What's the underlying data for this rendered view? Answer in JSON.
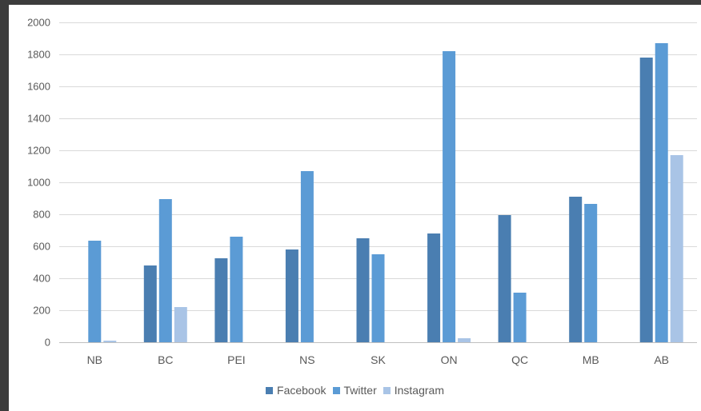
{
  "chart_data": {
    "type": "bar",
    "title": "",
    "xlabel": "",
    "ylabel": "",
    "categories": [
      "NB",
      "BC",
      "PEI",
      "NS",
      "SK",
      "ON",
      "QC",
      "MB",
      "AB"
    ],
    "series": [
      {
        "name": "Facebook",
        "color": "#4a7eb1",
        "values": [
          0,
          480,
          525,
          580,
          650,
          680,
          795,
          910,
          1780
        ]
      },
      {
        "name": "Twitter",
        "color": "#5b9bd5",
        "values": [
          635,
          895,
          660,
          1070,
          550,
          1820,
          310,
          865,
          1870
        ]
      },
      {
        "name": "Instagram",
        "color": "#a9c4e6",
        "values": [
          10,
          220,
          0,
          0,
          0,
          25,
          0,
          0,
          1170
        ]
      }
    ],
    "ylim": [
      0,
      2000
    ],
    "yticks": [
      0,
      200,
      400,
      600,
      800,
      1000,
      1200,
      1400,
      1600,
      1800,
      2000
    ],
    "grid": true,
    "legend_position": "bottom"
  }
}
